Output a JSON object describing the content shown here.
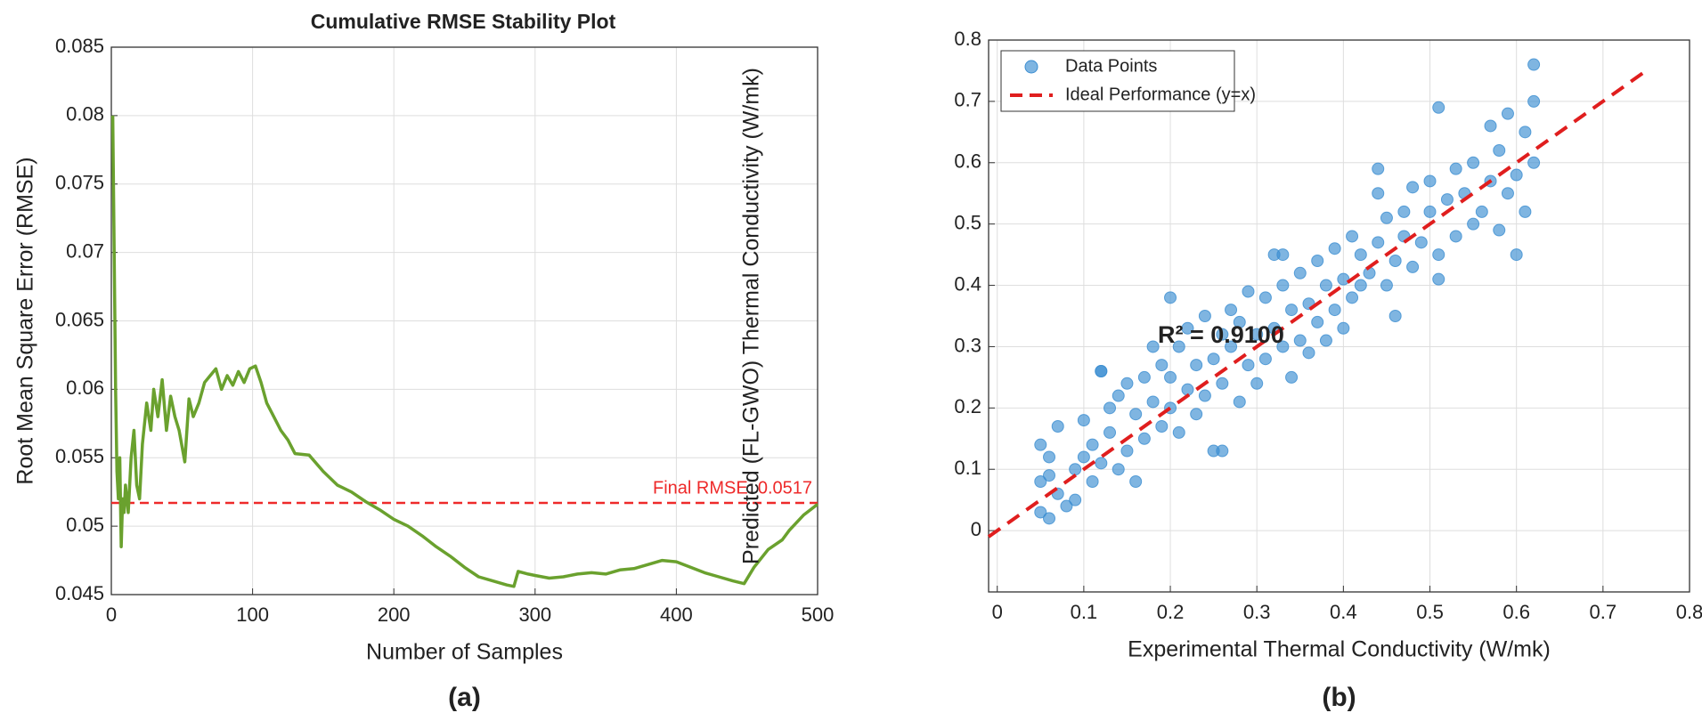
{
  "chart_data": [
    {
      "type": "line",
      "title": "Cumulative RMSE Stability Plot",
      "xlabel": "Number of Samples",
      "ylabel": "Root Mean Square Error (RMSE)",
      "caption": "(a)",
      "x": [
        1,
        2,
        3,
        4,
        5,
        6,
        7,
        8,
        9,
        10,
        12,
        14,
        16,
        18,
        20,
        22,
        25,
        28,
        30,
        33,
        36,
        39,
        42,
        45,
        48,
        52,
        55,
        58,
        62,
        66,
        70,
        74,
        78,
        82,
        86,
        90,
        94,
        98,
        102,
        106,
        110,
        115,
        120,
        125,
        130,
        140,
        150,
        160,
        170,
        180,
        190,
        200,
        210,
        220,
        230,
        240,
        250,
        260,
        270,
        280,
        285,
        288,
        295,
        300,
        310,
        320,
        330,
        340,
        350,
        360,
        370,
        380,
        390,
        400,
        410,
        420,
        430,
        440,
        448,
        455,
        465,
        475,
        480,
        490,
        500
      ],
      "values": [
        0.08,
        0.07,
        0.06,
        0.054,
        0.052,
        0.055,
        0.0485,
        0.052,
        0.051,
        0.053,
        0.051,
        0.055,
        0.057,
        0.053,
        0.052,
        0.056,
        0.059,
        0.057,
        0.06,
        0.058,
        0.0607,
        0.057,
        0.0595,
        0.058,
        0.057,
        0.0547,
        0.0593,
        0.058,
        0.059,
        0.0605,
        0.061,
        0.0615,
        0.06,
        0.061,
        0.0603,
        0.0613,
        0.0605,
        0.0615,
        0.0617,
        0.0605,
        0.059,
        0.058,
        0.057,
        0.0563,
        0.0553,
        0.0552,
        0.054,
        0.053,
        0.0525,
        0.0518,
        0.0512,
        0.0505,
        0.05,
        0.0493,
        0.0485,
        0.0478,
        0.047,
        0.0463,
        0.046,
        0.0457,
        0.0456,
        0.0467,
        0.0465,
        0.0464,
        0.0462,
        0.0463,
        0.0465,
        0.0466,
        0.0465,
        0.0468,
        0.0469,
        0.0472,
        0.0475,
        0.0474,
        0.047,
        0.0466,
        0.0463,
        0.046,
        0.0458,
        0.047,
        0.0483,
        0.049,
        0.0497,
        0.0508,
        0.0516
      ],
      "color": "#6aa12e",
      "xlim": [
        0,
        500
      ],
      "ylim": [
        0.045,
        0.085
      ],
      "xticks": [
        0,
        100,
        200,
        300,
        400,
        500
      ],
      "yticks": [
        0.045,
        0.05,
        0.055,
        0.06,
        0.065,
        0.07,
        0.075,
        0.08,
        0.085
      ],
      "grid": true,
      "reference_line": {
        "value": 0.0517,
        "label": "Final RMSE: 0.0517",
        "color": "#ee2a2a"
      }
    },
    {
      "type": "scatter",
      "xlabel": "Experimental Thermal Conductivity (W/mk)",
      "ylabel": "Predicted (FL-GWO) Thermal Conductivity (W/mk)",
      "caption": "(b)",
      "annotation": "R² = 0.9100",
      "legend": "upper left",
      "grid": true,
      "xlim": [
        -0.01,
        0.8
      ],
      "ylim": [
        -0.1,
        0.8
      ],
      "xticks": [
        0,
        0.1,
        0.2,
        0.3,
        0.4,
        0.5,
        0.6,
        0.7,
        0.8
      ],
      "yticks": [
        0,
        0.1,
        0.2,
        0.3,
        0.4,
        0.5,
        0.6,
        0.7,
        0.8
      ],
      "series": [
        {
          "name": "Data Points",
          "color": "#3b8dd1",
          "marker": "circle",
          "x": [
            0.05,
            0.05,
            0.06,
            0.06,
            0.07,
            0.05,
            0.07,
            0.08,
            0.06,
            0.09,
            0.09,
            0.1,
            0.1,
            0.11,
            0.11,
            0.12,
            0.12,
            0.13,
            0.13,
            0.14,
            0.14,
            0.15,
            0.15,
            0.16,
            0.16,
            0.17,
            0.17,
            0.18,
            0.18,
            0.19,
            0.19,
            0.2,
            0.2,
            0.21,
            0.21,
            0.22,
            0.22,
            0.23,
            0.23,
            0.24,
            0.24,
            0.25,
            0.25,
            0.26,
            0.26,
            0.27,
            0.27,
            0.28,
            0.28,
            0.29,
            0.29,
            0.3,
            0.3,
            0.31,
            0.31,
            0.32,
            0.32,
            0.33,
            0.33,
            0.34,
            0.34,
            0.35,
            0.35,
            0.36,
            0.36,
            0.37,
            0.37,
            0.38,
            0.38,
            0.39,
            0.39,
            0.4,
            0.4,
            0.41,
            0.41,
            0.42,
            0.42,
            0.43,
            0.44,
            0.44,
            0.45,
            0.45,
            0.46,
            0.46,
            0.47,
            0.47,
            0.48,
            0.48,
            0.49,
            0.5,
            0.5,
            0.51,
            0.51,
            0.52,
            0.53,
            0.53,
            0.54,
            0.55,
            0.55,
            0.56,
            0.57,
            0.57,
            0.58,
            0.58,
            0.59,
            0.59,
            0.6,
            0.6,
            0.61,
            0.61,
            0.62,
            0.62,
            0.62,
            0.2,
            0.33,
            0.26,
            0.12,
            0.44,
            0.51
          ],
          "values": [
            0.03,
            0.08,
            0.02,
            0.12,
            0.06,
            0.14,
            0.17,
            0.04,
            0.09,
            0.1,
            0.05,
            0.12,
            0.18,
            0.08,
            0.14,
            0.26,
            0.11,
            0.16,
            0.2,
            0.1,
            0.22,
            0.13,
            0.24,
            0.19,
            0.08,
            0.25,
            0.15,
            0.21,
            0.3,
            0.17,
            0.27,
            0.2,
            0.25,
            0.16,
            0.3,
            0.23,
            0.33,
            0.19,
            0.27,
            0.35,
            0.22,
            0.28,
            0.13,
            0.32,
            0.24,
            0.36,
            0.3,
            0.21,
            0.34,
            0.27,
            0.39,
            0.32,
            0.24,
            0.38,
            0.28,
            0.45,
            0.33,
            0.3,
            0.4,
            0.25,
            0.36,
            0.42,
            0.31,
            0.37,
            0.29,
            0.44,
            0.34,
            0.4,
            0.31,
            0.46,
            0.36,
            0.41,
            0.33,
            0.48,
            0.38,
            0.45,
            0.4,
            0.42,
            0.55,
            0.47,
            0.51,
            0.4,
            0.44,
            0.35,
            0.48,
            0.52,
            0.43,
            0.56,
            0.47,
            0.52,
            0.57,
            0.45,
            0.69,
            0.54,
            0.48,
            0.59,
            0.55,
            0.5,
            0.6,
            0.52,
            0.57,
            0.66,
            0.49,
            0.62,
            0.55,
            0.68,
            0.58,
            0.45,
            0.65,
            0.52,
            0.7,
            0.6,
            0.76,
            0.38,
            0.45,
            0.13,
            0.26,
            0.59,
            0.41
          ]
        },
        {
          "name": "Ideal Performance (y=x)",
          "color": "#e01e1e",
          "linestyle": "dashed",
          "x": [
            -0.01,
            0.75
          ],
          "values": [
            -0.01,
            0.75
          ]
        }
      ]
    }
  ]
}
